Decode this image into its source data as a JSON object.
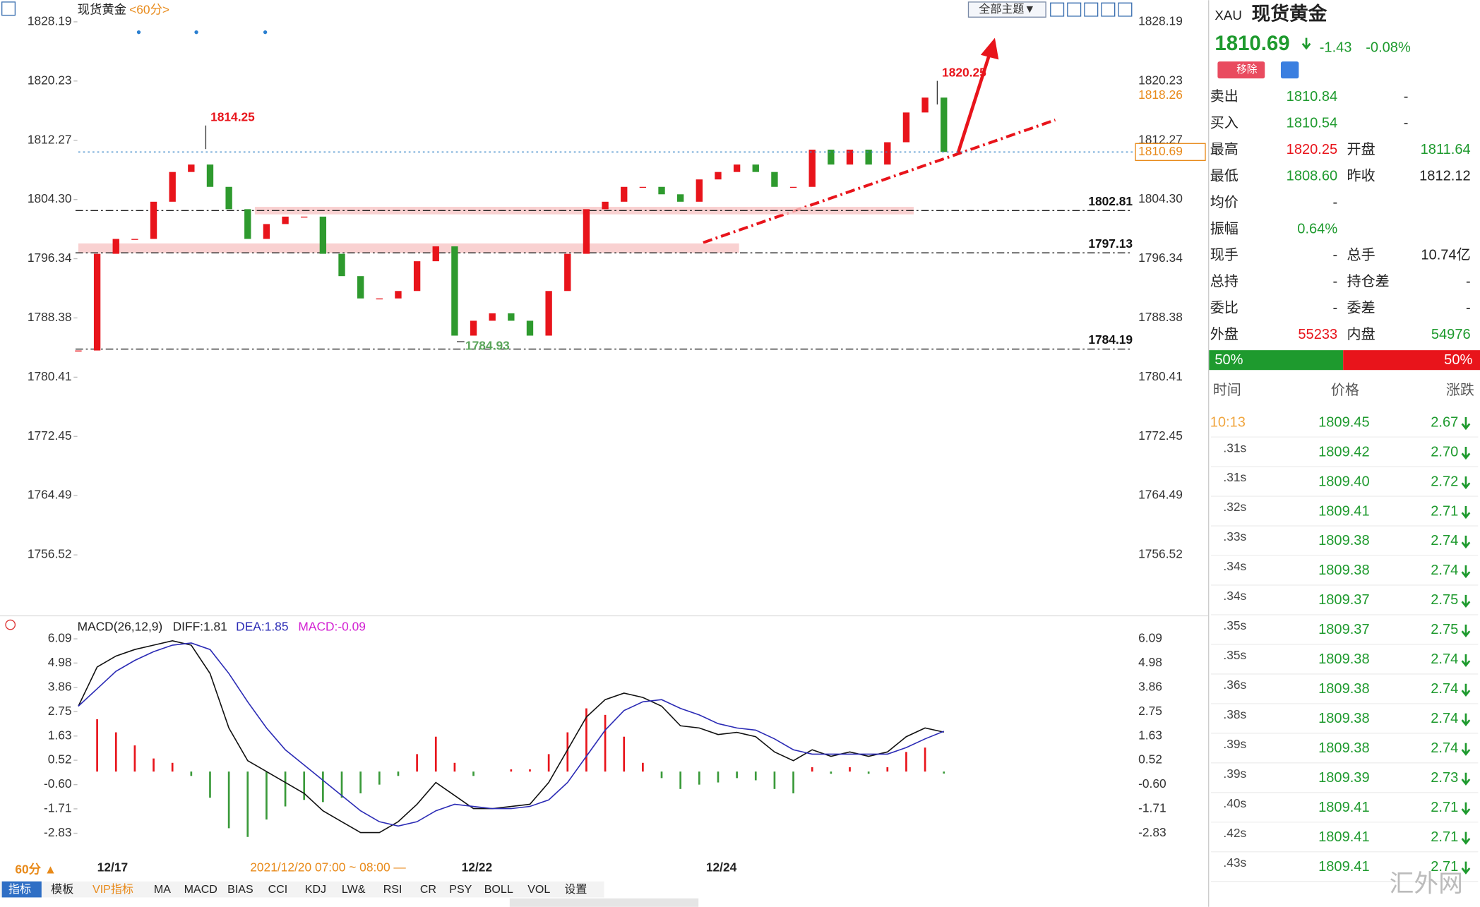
{
  "header": {
    "symbol": "现货黄金",
    "period": "<60分>",
    "theme_button": "全部主题▼"
  },
  "chart_data": [
    {
      "type": "candlestick",
      "up_color": "#e8141b",
      "down_color": "#2e9a2e",
      "closes": [
        1784,
        1797,
        1799,
        1799,
        1804,
        1808,
        1809,
        1806,
        1803,
        1799,
        1801,
        1802,
        1802,
        1797,
        1794,
        1791,
        1791,
        1792,
        1796,
        1798,
        1786,
        1788,
        1789,
        1788,
        1786,
        1792,
        1797,
        1803,
        1804,
        1806,
        1806,
        1805,
        1804,
        1807,
        1808,
        1809,
        1808,
        1806,
        1806,
        1811,
        1809,
        1811,
        1809,
        1812,
        1816,
        1818,
        1810.69
      ],
      "ylim": [
        1748.65,
        1830.47
      ],
      "yticks": [
        1828.19,
        1820.23,
        1812.27,
        {
          "value": 1804.3,
          "label": "1804.30"
        },
        1796.34,
        1788.38,
        1780.41,
        1772.45,
        1764.49,
        1756.52
      ],
      "levels": [
        1802.81,
        1797.13,
        1784.19
      ],
      "high_labels": [
        1814.25,
        1820.25
      ],
      "low_label": 1784.93,
      "marker_price": 1818.26
    },
    {
      "type": "macd",
      "title": "MACD(26,12,9)",
      "legend": [
        "DIFF:1.81",
        "DEA:1.85",
        "MACD:-0.09"
      ],
      "ylim": [
        -4.0,
        6.39
      ],
      "yticks": [
        6.09,
        4.98,
        3.86,
        2.75,
        1.63,
        0.52,
        {
          "value": -0.6,
          "label": "-0.60"
        },
        -1.71,
        -2.83
      ],
      "series": [
        {
          "name": "DIFF",
          "color": "#111111",
          "values": [
            3.0,
            4.8,
            5.3,
            5.6,
            5.8,
            6.0,
            5.8,
            4.5,
            2.0,
            0.5,
            0.0,
            -0.5,
            -1.0,
            -1.8,
            -2.3,
            -2.8,
            -2.8,
            -2.3,
            -1.5,
            -0.5,
            -1.1,
            -1.7,
            -1.7,
            -1.6,
            -1.5,
            -0.5,
            1.0,
            2.5,
            3.3,
            3.6,
            3.4,
            3.0,
            2.1,
            2.0,
            1.7,
            1.8,
            1.6,
            0.9,
            0.5,
            1.0,
            0.7,
            0.9,
            0.7,
            0.9,
            1.6,
            2.0,
            1.81
          ]
        },
        {
          "name": "DEA",
          "color": "#2b2bb5",
          "values": [
            3.0,
            3.8,
            4.6,
            5.1,
            5.5,
            5.8,
            5.9,
            5.6,
            4.5,
            3.2,
            2.0,
            1.0,
            0.3,
            -0.4,
            -1.1,
            -1.8,
            -2.3,
            -2.5,
            -2.3,
            -1.8,
            -1.5,
            -1.6,
            -1.7,
            -1.7,
            -1.6,
            -1.3,
            -0.5,
            0.7,
            1.9,
            2.8,
            3.2,
            3.3,
            2.9,
            2.6,
            2.2,
            2.0,
            1.9,
            1.5,
            1.0,
            0.8,
            0.8,
            0.8,
            0.8,
            0.8,
            1.1,
            1.5,
            1.85
          ]
        },
        {
          "name": "MACD",
          "color": "#e8141b",
          "down_color": "#3a9a3a",
          "values": [
            0.0,
            2.4,
            1.8,
            1.2,
            0.6,
            0.4,
            -0.2,
            -1.2,
            -2.6,
            -3.0,
            -2.2,
            -1.6,
            -1.3,
            -1.4,
            -1.2,
            -1.0,
            -0.6,
            -0.2,
            0.8,
            1.6,
            0.4,
            -0.2,
            0.0,
            0.1,
            0.1,
            0.8,
            1.8,
            2.9,
            2.6,
            1.6,
            0.4,
            -0.3,
            -0.8,
            -0.6,
            -0.5,
            -0.3,
            -0.4,
            -0.8,
            -1.0,
            0.2,
            -0.1,
            0.2,
            -0.1,
            0.2,
            0.9,
            1.1,
            -0.09
          ]
        }
      ]
    }
  ],
  "time_axis": {
    "period_button": "60分 ▲",
    "labels": [
      "12/17",
      "2021/12/20 07:00 ~ 08:00 —",
      "12/22",
      "12/24"
    ]
  },
  "tabs": [
    "指标",
    "模板",
    "VIP指标",
    "MA",
    "MACD",
    "BIAS",
    "CCI",
    "KDJ",
    "LW&",
    "RSI",
    "CR",
    "PSY",
    "BOLL",
    "VOL",
    "设置"
  ],
  "quote": {
    "code": "XAU",
    "name": "现货黄金",
    "price": "1810.69",
    "change": "-1.43",
    "change_pct": "-0.08%",
    "remove": "移除",
    "rows": [
      [
        "卖出",
        "1810.84",
        "-"
      ],
      [
        "买入",
        "1810.54",
        "-"
      ],
      [
        "最高",
        "1820.25",
        "开盘",
        "1811.64"
      ],
      [
        "最低",
        "1808.60",
        "昨收",
        "1812.12"
      ],
      [
        "均价",
        "-"
      ],
      [
        "振幅",
        "0.64%"
      ],
      [
        "现手",
        "-",
        "总手",
        "10.74亿"
      ],
      [
        "总持",
        "-",
        "持仓差",
        "-"
      ],
      [
        "委比",
        "-",
        "委差",
        "-"
      ],
      [
        "外盘",
        "55233",
        "内盘",
        "54976"
      ]
    ],
    "ratio": [
      "50%",
      "50%"
    ]
  },
  "trades": {
    "headers": [
      "时间",
      "价格",
      "涨跌"
    ],
    "rows": [
      [
        "10:13",
        "1809.45",
        "2.67"
      ],
      [
        ".31s",
        "1809.42",
        "2.70"
      ],
      [
        ".31s",
        "1809.40",
        "2.72"
      ],
      [
        ".32s",
        "1809.41",
        "2.71"
      ],
      [
        ".33s",
        "1809.38",
        "2.74"
      ],
      [
        ".34s",
        "1809.38",
        "2.74"
      ],
      [
        ".34s",
        "1809.37",
        "2.75"
      ],
      [
        ".35s",
        "1809.37",
        "2.75"
      ],
      [
        ".35s",
        "1809.38",
        "2.74"
      ],
      [
        ".36s",
        "1809.38",
        "2.74"
      ],
      [
        ".38s",
        "1809.38",
        "2.74"
      ],
      [
        ".39s",
        "1809.38",
        "2.74"
      ],
      [
        ".39s",
        "1809.39",
        "2.73"
      ],
      [
        ".40s",
        "1809.41",
        "2.71"
      ],
      [
        ".42s",
        "1809.41",
        "2.71"
      ],
      [
        ".43s",
        "1809.41",
        "2.71"
      ]
    ]
  },
  "watermark": "汇外网"
}
